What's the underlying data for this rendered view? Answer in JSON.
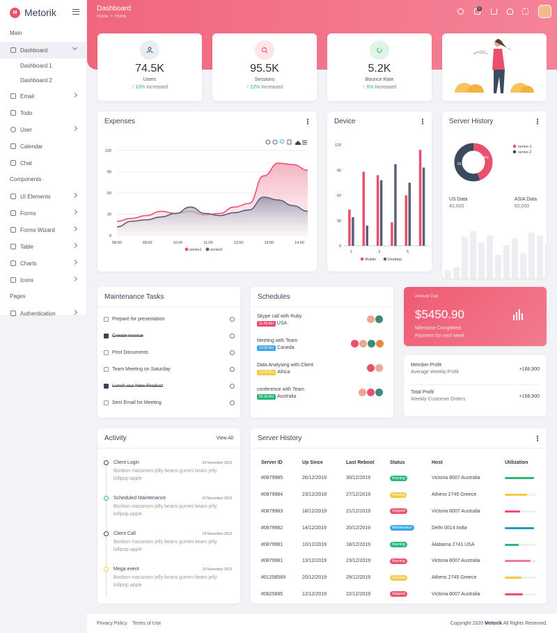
{
  "brand": "Metorik",
  "sidebar": {
    "main_heading": "Main",
    "dashboard": "Dashboard",
    "dashboard1": "Dashboard 1",
    "dashboard2": "Dashboard 2",
    "email": "Email",
    "todo": "Todo",
    "user": "User",
    "calendar": "Calendar",
    "chat": "Chat",
    "components_heading": "Components",
    "ui_elements": "UI Elements",
    "forms": "Forms",
    "forms_wizard": "Forms Wizard",
    "table": "Table",
    "charts": "Charts",
    "icons": "Icons",
    "pages_heading": "Pages",
    "authentication": "Authentication"
  },
  "header": {
    "title": "Dashboard",
    "crumb_home": "Home",
    "crumb_sep": ">",
    "crumb_current": "Home",
    "badge_count": "0"
  },
  "stats": [
    {
      "value": "74.5K",
      "label": "Users",
      "change": "10%",
      "suffix": " Increased",
      "color": "#e8ecf3"
    },
    {
      "value": "95.5K",
      "label": "Sessions",
      "change": "22%",
      "suffix": " Increased",
      "color": "#fde5ea"
    },
    {
      "value": "5.2K",
      "label": "Bounce Rate",
      "change": "6%",
      "suffix": " Increased",
      "color": "#dff5e3"
    }
  ],
  "expenses": {
    "title": "Expenses"
  },
  "device": {
    "title": "Device"
  },
  "server_history_chart": {
    "title": "Server History",
    "us_label": "US Data",
    "us_value": "45,000",
    "asia_label": "ASIA Data",
    "asia_value": "60,000"
  },
  "chart_data": [
    {
      "type": "area",
      "title": "Expenses",
      "categories": [
        "08:00",
        "09:00",
        "10:00",
        "11:00",
        "12:00",
        "13:00",
        "14:00"
      ],
      "x": [
        "08:00",
        "08:30",
        "09:00",
        "09:30",
        "10:00",
        "10:30",
        "11:00",
        "11:30",
        "12:00",
        "12:30",
        "13:00",
        "13:30",
        "14:00",
        "14:30"
      ],
      "ylim": [
        0,
        120
      ],
      "yticks": [
        0,
        30,
        60,
        90,
        120
      ],
      "series": [
        {
          "name": "series1",
          "color": "#e8506d",
          "values": [
            20,
            24,
            28,
            34,
            31,
            34,
            29,
            31,
            40,
            45,
            84,
            102,
            100,
            92
          ]
        },
        {
          "name": "series2",
          "color": "#5b5f7a",
          "values": [
            12,
            20,
            22,
            26,
            31,
            40,
            31,
            28,
            32,
            36,
            54,
            50,
            42,
            34
          ]
        }
      ],
      "legend": "bottom"
    },
    {
      "type": "bar",
      "title": "Device",
      "categories": [
        "1",
        "2",
        "3",
        "4",
        "5",
        "6"
      ],
      "xticks": [
        "1",
        "3",
        "5"
      ],
      "ylim": [
        0,
        120
      ],
      "yticks": [
        0,
        30,
        60,
        90,
        120
      ],
      "series": [
        {
          "name": "Mobile",
          "color": "#e8506d",
          "values": [
            43,
            88,
            84,
            28,
            60,
            114
          ]
        },
        {
          "name": "Desktop",
          "color": "#5b5f7a",
          "values": [
            34,
            24,
            78,
            97,
            75,
            93
          ]
        }
      ],
      "legend": "bottom"
    },
    {
      "type": "pie",
      "title": "Server History",
      "donut": true,
      "series": [
        {
          "name": "series-1",
          "color": "#e8506d",
          "value": 44.4
        },
        {
          "name": "series-2",
          "color": "#3b4a5c",
          "value": 55.6
        }
      ],
      "labels": [
        "44.4%",
        "55.6%"
      ],
      "legend": "right"
    },
    {
      "type": "bar",
      "title": "Server History (background)",
      "values": [
        12,
        16,
        60,
        68,
        52,
        62,
        34,
        48,
        58,
        36,
        66,
        62,
        50,
        54,
        40,
        50
      ],
      "color": "#eceef2"
    }
  ],
  "maintenance": {
    "title": "Maintenance Tasks",
    "tasks": [
      {
        "label": "Prepare for presentation",
        "done": false
      },
      {
        "label": "Create invoice",
        "done": true
      },
      {
        "label": "Print Documents",
        "done": false
      },
      {
        "label": "Team Meeting on Saturday",
        "done": false
      },
      {
        "label": "Lunch our New Product",
        "done": true
      },
      {
        "label": "Sent Email for Meeting",
        "done": false
      }
    ]
  },
  "schedules": {
    "title": "Schedules",
    "items": [
      {
        "title": "Skype call with Ruby",
        "time": "11:45 Am",
        "place": "USA",
        "tag_color": "#e8506d"
      },
      {
        "title": "Meeting with Team",
        "time": "10:50 Am",
        "place": "Caneda",
        "tag_color": "#3aa7e8"
      },
      {
        "title": "Data Analysing with Client",
        "time": "10:06 Pm",
        "place": "Africa",
        "tag_color": "#f7c948"
      },
      {
        "title": "conference with Team",
        "time": "05:10 Am",
        "place": "Australia",
        "tag_color": "#2bb77a"
      }
    ]
  },
  "amount": {
    "label": "Amount Due",
    "value": "$5450.90",
    "line1": "Milestone Completed",
    "line2": "Payment for next week"
  },
  "profits": [
    {
      "title": "Member Profit",
      "sub": "Average Weekly Profit",
      "value": "+168,900"
    },
    {
      "title": "Total Profit",
      "sub": "Weekly Customer Orders",
      "value": "+168,900"
    }
  ],
  "activity": {
    "title": "Activity",
    "view_all": "View All",
    "items": [
      {
        "title": "Client Login",
        "date": "24 November 2019",
        "body": "Bonbon macaroon jelly beans gummi bears jelly lollipop apple",
        "color": "#3b3f5c"
      },
      {
        "title": "Scheduled Maintenance",
        "date": "23 November 2019",
        "body": "Bonbon macaroon jelly beans gummi bears jelly lollipop apple",
        "color": "#2bb77a"
      },
      {
        "title": "Client Call",
        "date": "19 November 2019",
        "body": "Bonbon macaroon jelly beans gummi bears jelly lollipop apple",
        "color": "#3b3f5c"
      },
      {
        "title": "Mega event",
        "date": "15 November 2019",
        "body": "Bonbon macaroon jelly beans gummi bears jelly lollipop apple",
        "color": "#f7c948"
      }
    ]
  },
  "server_table": {
    "title": "Server History",
    "headers": [
      "Server ID",
      "Up Since",
      "Last Reboot",
      "Status",
      "Host",
      "Utilization"
    ],
    "rows": [
      {
        "id": "#0879985",
        "up": "26/12/2019",
        "reboot": "30/12/2019",
        "status": "Running",
        "status_color": "#2bb77a",
        "host": "Victoria 8007 Australia",
        "util": 0.95,
        "util_color": "#2bb77a"
      },
      {
        "id": "#0879984",
        "up": "23/12/2019",
        "reboot": "27/12/2019",
        "status": "Pending",
        "status_color": "#f7c948",
        "host": "Athens 2745 Greece",
        "util": 0.72,
        "util_color": "#f7c948"
      },
      {
        "id": "#0879983",
        "up": "18/12/2019",
        "reboot": "21/12/2019",
        "status": "Stopped",
        "status_color": "#e8506d",
        "host": "Victoria 8007 Australia",
        "util": 0.5,
        "util_color": "#e8506d"
      },
      {
        "id": "#0879982",
        "up": "14/12/2019",
        "reboot": "20/12/2019",
        "status": "Maintenance",
        "status_color": "#3aa7e8",
        "host": "Delhi 0014 India",
        "util": 0.95,
        "util_color": "#17a2b8"
      },
      {
        "id": "#0879981",
        "up": "10/12/2019",
        "reboot": "18/12/2019",
        "status": "Running",
        "status_color": "#2bb77a",
        "host": "Alabama 2741 USA",
        "util": 0.45,
        "util_color": "#2bb77a"
      },
      {
        "id": "#0879981",
        "up": "13/12/2019",
        "reboot": "23/12/2019",
        "status": "Running",
        "status_color": "#e8506d",
        "host": "Victoria 8007 Australia",
        "util": 0.85,
        "util_color": "#f07a95"
      },
      {
        "id": "#01258569",
        "up": "20/12/2019",
        "reboot": "29/12/2019",
        "status": "Running",
        "status_color": "#f7c948",
        "host": "Athens 2745 Greece",
        "util": 0.55,
        "util_color": "#f7c948"
      },
      {
        "id": "#0825685",
        "up": "12/12/2019",
        "reboot": "22/12/2019",
        "status": "Stopped",
        "status_color": "#e8506d",
        "host": "Victoria 8007 Australia",
        "util": 0.6,
        "util_color": "#e8506d"
      }
    ]
  },
  "footer": {
    "privacy": "Privacy Policy",
    "terms": "Terms of Use",
    "copyright_pre": "Copyright 2020 ",
    "copyright_brand": "Metorik",
    "copyright_post": " All Rights Reserved."
  }
}
